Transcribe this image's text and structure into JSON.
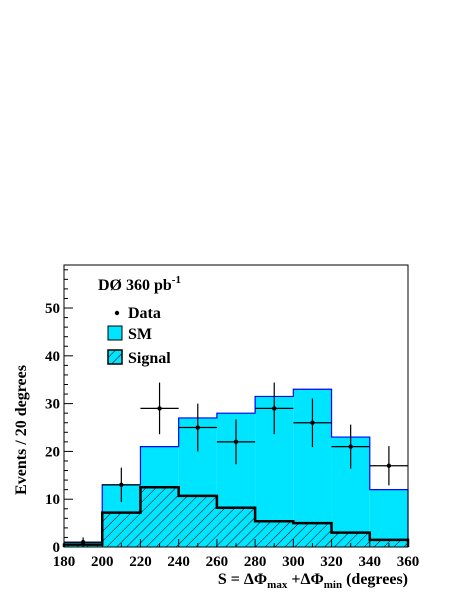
{
  "chart_data": {
    "type": "histogram",
    "title": "DØ 360 pb",
    "title_superscript": "-1",
    "xlabel": {
      "prefix": "S = ΔΦ",
      "sub1": "max",
      "mid": " +ΔΦ",
      "sub2": "min",
      "suffix": " (degrees)"
    },
    "ylabel": "Events / 20 degrees",
    "xlim": [
      180,
      360
    ],
    "ylim": [
      0,
      59
    ],
    "bin_edges": [
      180,
      200,
      220,
      240,
      260,
      280,
      300,
      320,
      340,
      360
    ],
    "x_ticks": [
      "180",
      "200",
      "220",
      "240",
      "260",
      "280",
      "300",
      "320",
      "340",
      "360"
    ],
    "y_ticks": [
      "0",
      "10",
      "20",
      "30",
      "40",
      "50"
    ],
    "legend": {
      "data": "Data",
      "sm": "SM",
      "signal": "Signal"
    },
    "series": [
      {
        "name": "SM",
        "type": "hist",
        "color": "#00e5ff",
        "values": [
          1,
          13,
          21,
          27,
          28,
          31.5,
          33,
          23,
          12
        ]
      },
      {
        "name": "Signal",
        "type": "hist-hatched",
        "color": "#000000",
        "values": [
          0.5,
          7.2,
          12.5,
          10.7,
          8.2,
          5.4,
          5,
          3,
          1.5
        ]
      },
      {
        "name": "Data",
        "type": "points",
        "x": [
          190,
          210,
          230,
          250,
          270,
          290,
          310,
          330,
          350
        ],
        "y": [
          1,
          13,
          29,
          25,
          22,
          29,
          26,
          21,
          17
        ],
        "err": [
          1,
          3.6,
          5.4,
          5,
          4.7,
          5.4,
          5.1,
          4.6,
          4.1
        ]
      }
    ]
  }
}
